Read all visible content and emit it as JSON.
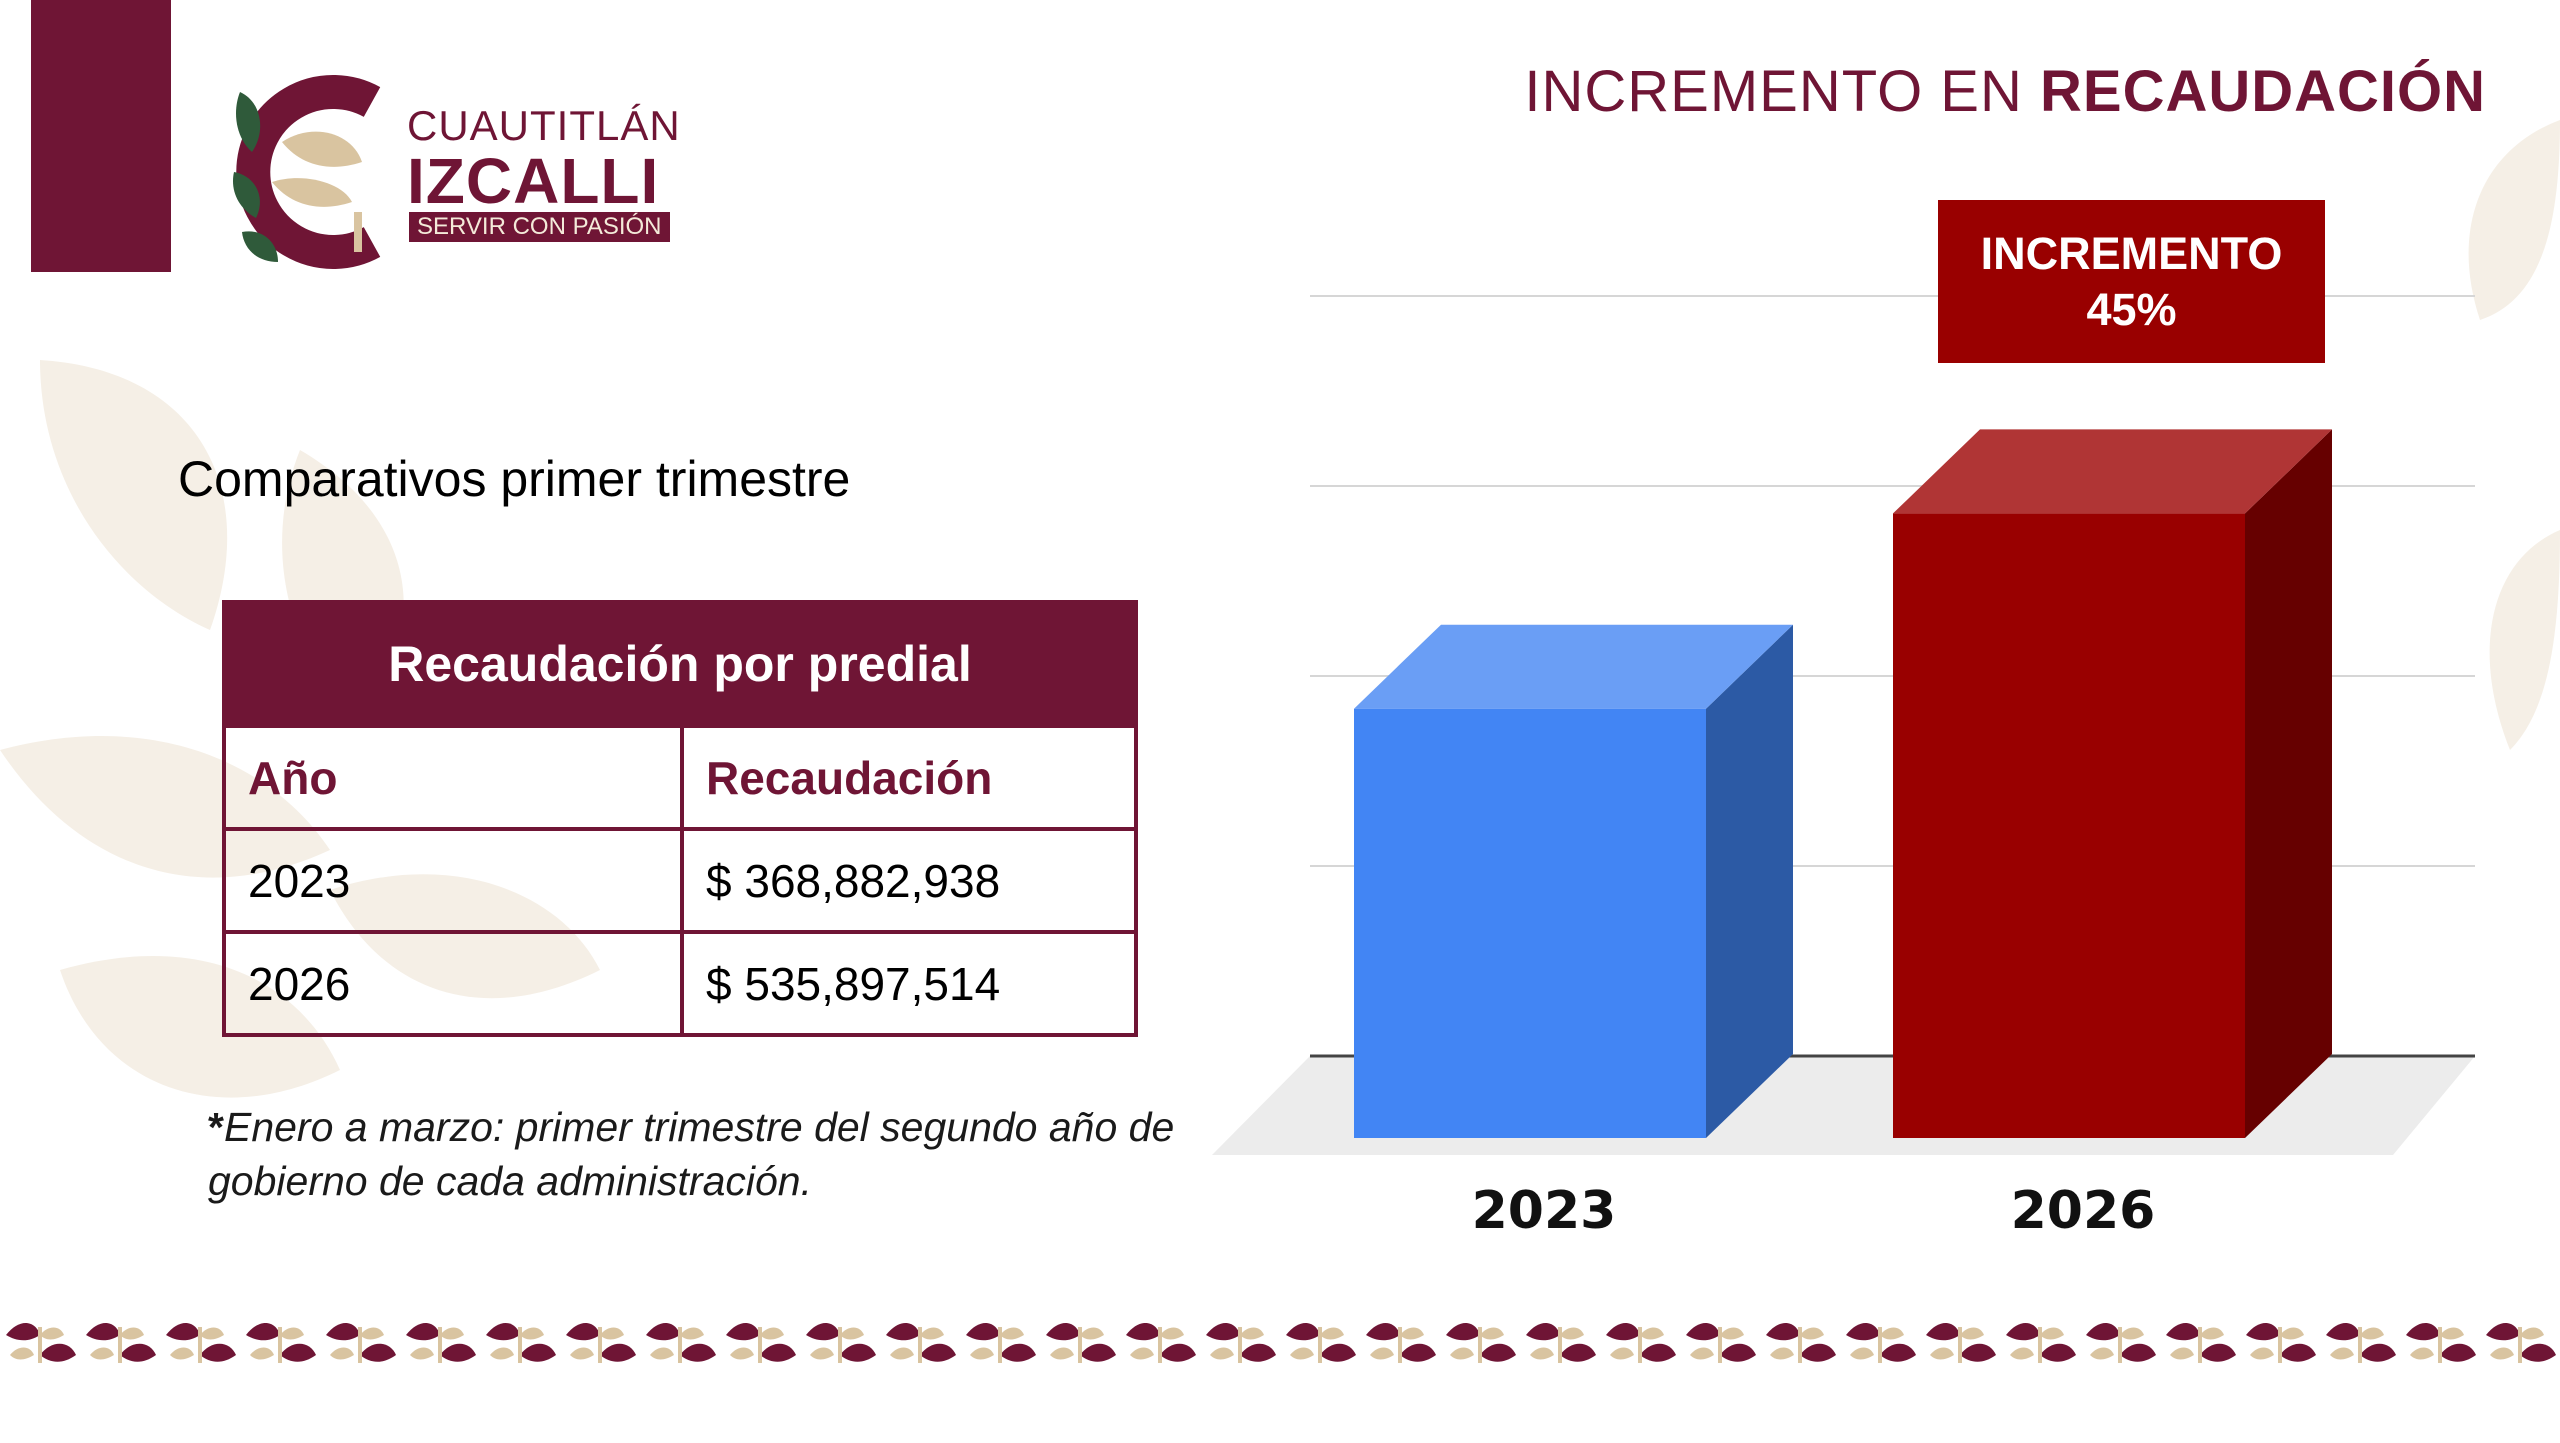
{
  "header": {
    "title_regular": "INCREMENTO EN ",
    "title_bold": "RECAUDACIÓN"
  },
  "logo": {
    "line1": "CUAUTITLÁN",
    "line2": "IZCALLI",
    "line3": "SERVIR CON PASIÓN"
  },
  "subtitle": "Comparativos primer trimestre",
  "table": {
    "title": "Recaudación por predial",
    "headers": [
      "Año",
      "Recaudación"
    ],
    "rows": [
      [
        "2023",
        "$ 368,882,938"
      ],
      [
        "2026",
        "$ 535,897,514"
      ]
    ]
  },
  "footnote": {
    "marker": "*",
    "text": "Enero a marzo: primer trimestre del segundo año de gobierno de cada administración."
  },
  "callout": {
    "line1": "INCREMENTO",
    "line2": "45%"
  },
  "colors": {
    "brand": "#6f1535",
    "bar_2023": "#4285f4",
    "bar_2026": "#990000",
    "accent_beige": "#d9c4a0"
  },
  "chart_data": {
    "type": "bar",
    "categories": [
      "2023",
      "2026"
    ],
    "values": [
      368882938,
      535897514
    ],
    "title": "",
    "xlabel": "",
    "ylabel": "",
    "ylim": [
      0,
      650000000
    ],
    "grid": true,
    "three_d": true
  }
}
